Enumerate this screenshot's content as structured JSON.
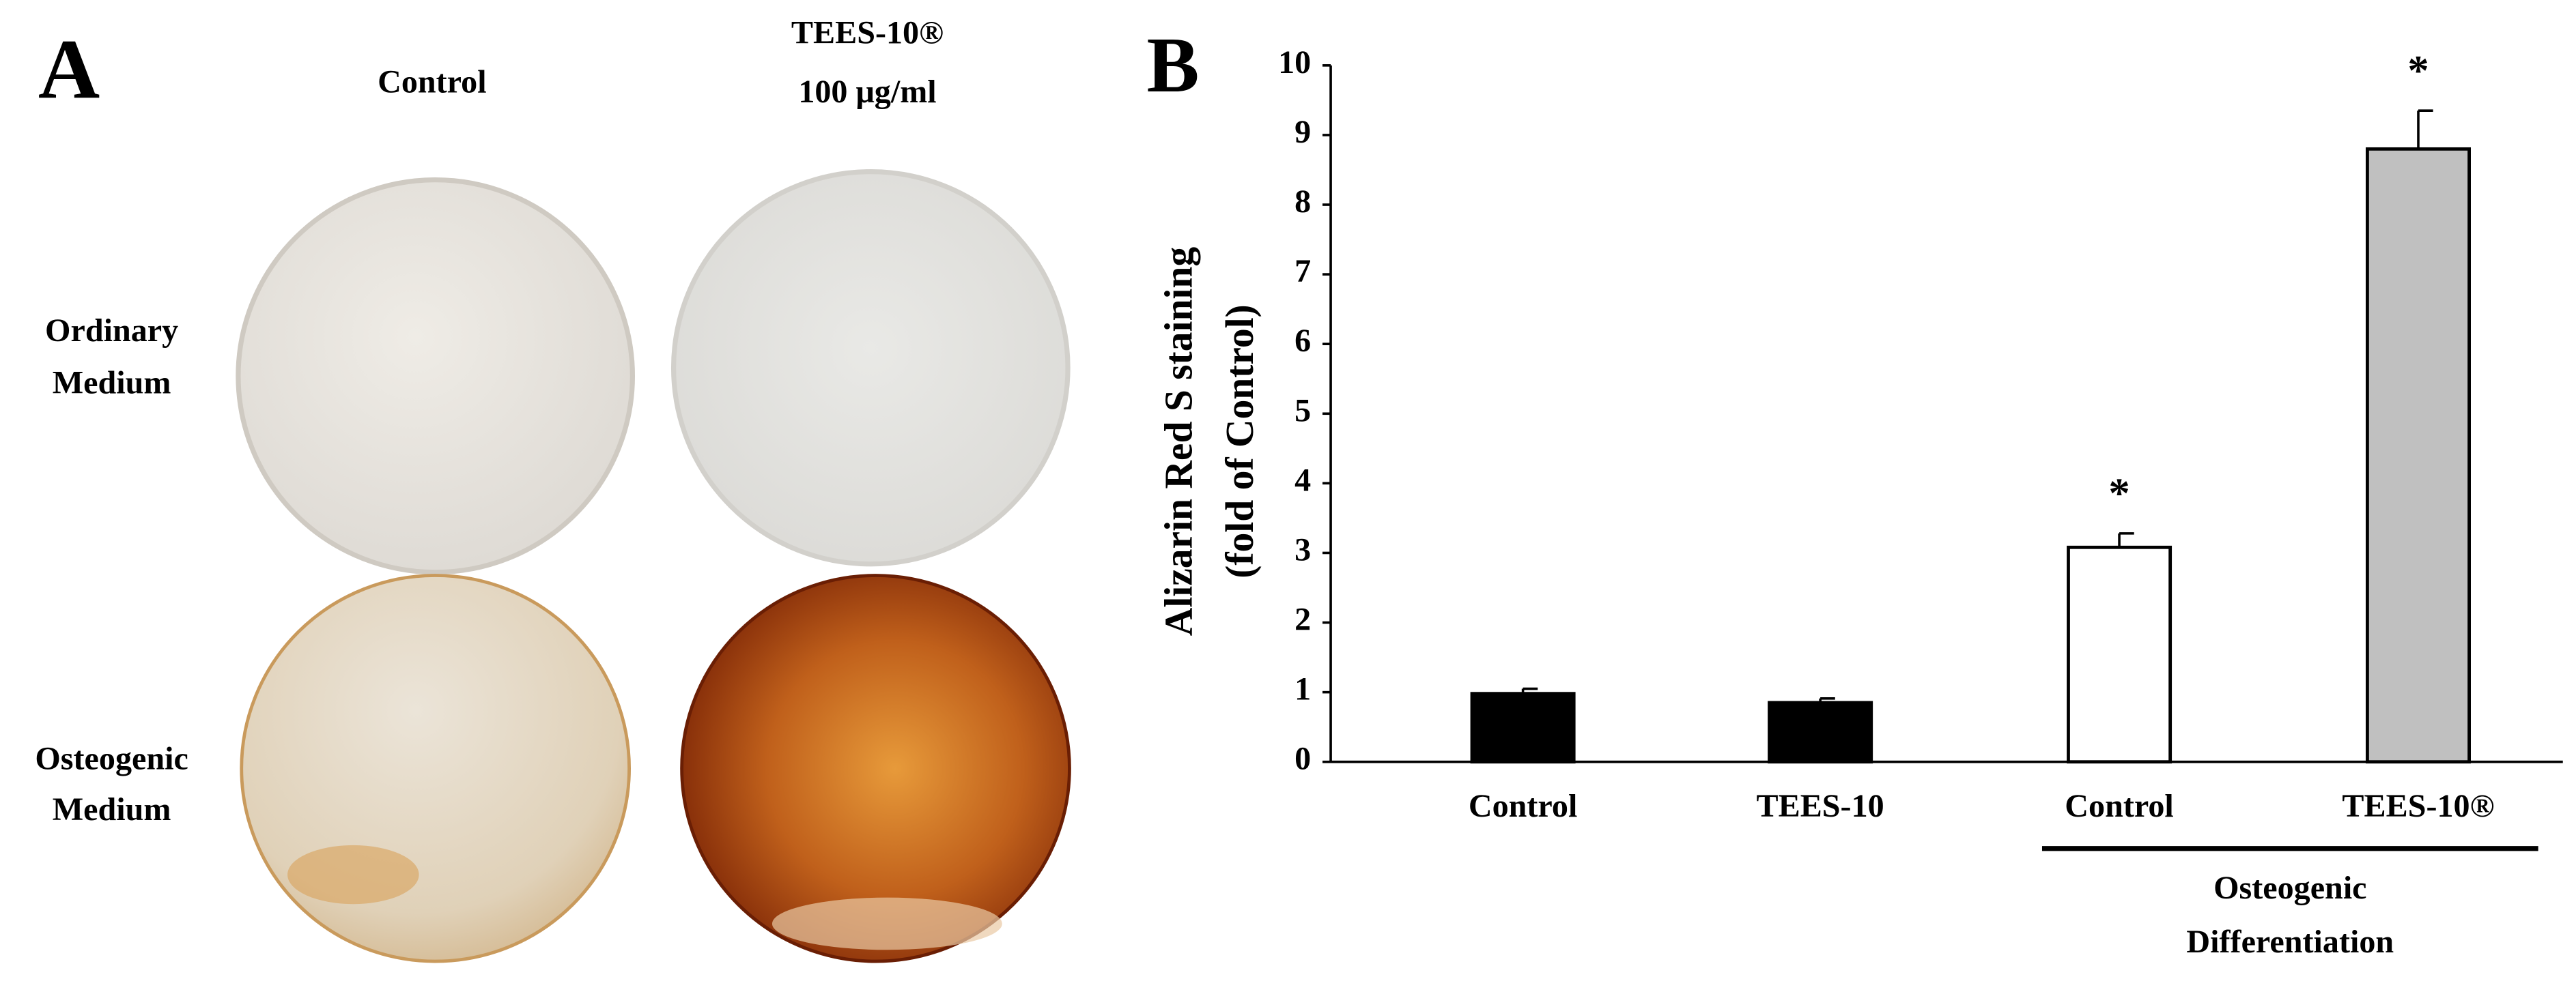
{
  "panel_a": {
    "label": "A",
    "columns": [
      [
        "Control"
      ],
      [
        "TEES-10®",
        "100 μg/ml"
      ]
    ],
    "rows": [
      [
        "Ordinary",
        "Medium"
      ],
      [
        "Osteogenic",
        "Medium"
      ]
    ]
  },
  "chart_data": {
    "type": "bar",
    "panel_label": "B",
    "ylabel": [
      "Alizarin Red S staining",
      "(fold of Control)"
    ],
    "categories": [
      "Control",
      "TEES-10",
      "Control",
      "TEES-10®"
    ],
    "values": [
      0.98,
      0.85,
      3.08,
      8.8
    ],
    "errors": [
      0.07,
      0.06,
      0.2,
      0.55
    ],
    "colors": [
      "#000000",
      "#000000",
      "#ffffff",
      "#c0c0c0"
    ],
    "significance": [
      null,
      null,
      "*",
      "*"
    ],
    "group_label": [
      "Osteogenic",
      "Differentiation"
    ],
    "ylim": [
      0,
      10
    ],
    "yticks": [
      0,
      1,
      2,
      3,
      4,
      5,
      6,
      7,
      8,
      9,
      10
    ],
    "grid": false
  }
}
